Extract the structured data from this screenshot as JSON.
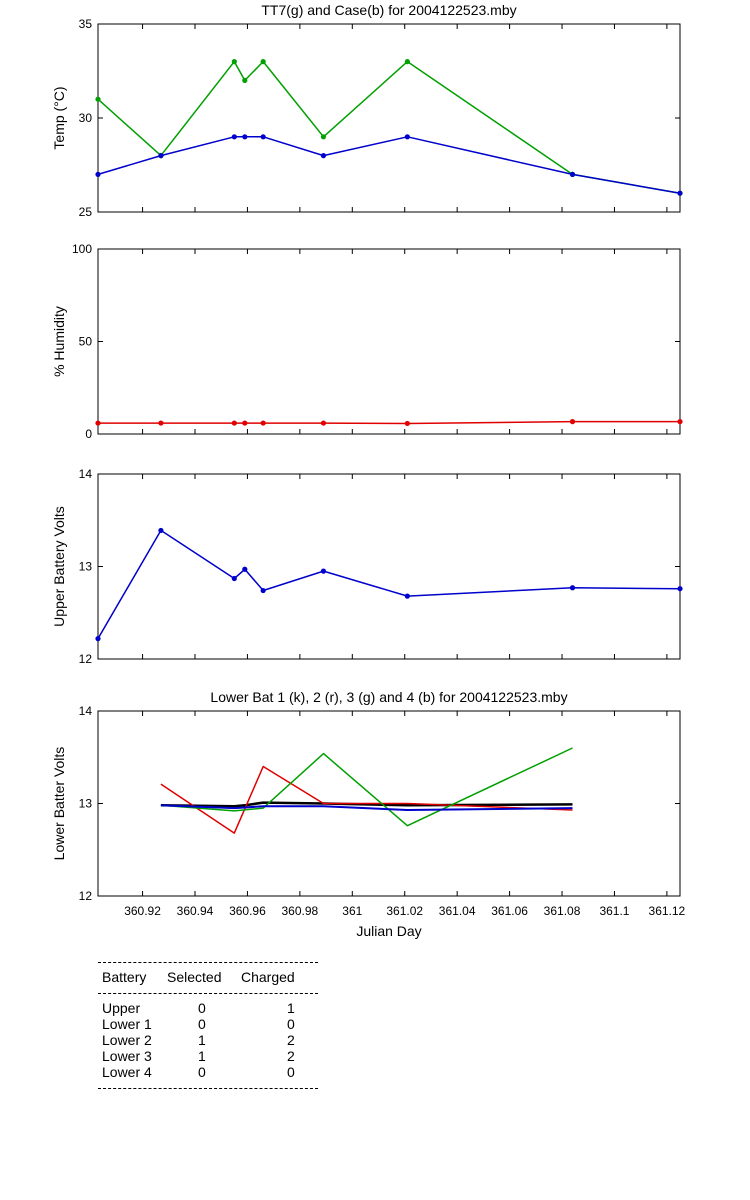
{
  "chart_data": [
    {
      "type": "line",
      "title": "TT7(g) and Case(b) for 2004122523.mby",
      "ylabel": "Temp  (°C)",
      "xlabel": "",
      "xlim": [
        360.903,
        361.125
      ],
      "ylim": [
        25,
        35
      ],
      "yticks": [
        25,
        30,
        35
      ],
      "markers": true,
      "series": [
        {
          "color": "#00a000",
          "x": [
            360.903,
            360.927,
            360.955,
            360.959,
            360.966,
            360.989,
            361.021,
            361.084,
            361.125
          ],
          "y": [
            31,
            28,
            33,
            32,
            33,
            29,
            33,
            27,
            26
          ]
        },
        {
          "color": "#0000cc",
          "x": [
            360.903,
            360.927,
            360.955,
            360.959,
            360.966,
            360.989,
            361.021,
            361.084,
            361.125
          ],
          "y": [
            27,
            28,
            29,
            29,
            29,
            28,
            29,
            27,
            26
          ]
        }
      ]
    },
    {
      "type": "line",
      "title": "",
      "ylabel": "% Humidity",
      "xlabel": "",
      "xlim": [
        360.903,
        361.125
      ],
      "ylim": [
        0,
        100
      ],
      "yticks": [
        0,
        50,
        100
      ],
      "markers": true,
      "series": [
        {
          "color": "#e00000",
          "x": [
            360.903,
            360.927,
            360.955,
            360.959,
            360.966,
            360.989,
            361.021,
            361.084,
            361.125
          ],
          "y": [
            5.9,
            5.9,
            5.9,
            5.9,
            5.9,
            5.9,
            5.7,
            6.7,
            6.7
          ]
        }
      ]
    },
    {
      "type": "line",
      "title": "",
      "ylabel": "Upper Battery Volts",
      "xlabel": "",
      "xlim": [
        360.903,
        361.125
      ],
      "ylim": [
        12,
        14
      ],
      "yticks": [
        12,
        13,
        14
      ],
      "markers": true,
      "series": [
        {
          "color": "#0000cc",
          "x": [
            360.903,
            360.927,
            360.955,
            360.959,
            360.966,
            360.989,
            361.021,
            361.084,
            361.125
          ],
          "y": [
            12.22,
            13.39,
            12.87,
            12.97,
            12.74,
            12.95,
            12.68,
            12.77,
            12.76
          ]
        }
      ]
    },
    {
      "type": "line",
      "title": "Lower Bat 1 (k), 2 (r), 3 (g) and 4 (b) for 2004122523.mby",
      "ylabel": "Lower Batter Volts",
      "xlabel": "Julian Day",
      "xlim": [
        360.903,
        361.125
      ],
      "ylim": [
        12,
        14
      ],
      "yticks": [
        12,
        13,
        14
      ],
      "xticks": [
        360.92,
        360.94,
        360.96,
        360.98,
        361,
        361.02,
        361.04,
        361.06,
        361.08,
        361.1,
        361.12
      ],
      "xticklabels": [
        "360.92",
        "360.94",
        "360.96",
        "360.98",
        "361",
        "361.02",
        "361.04",
        "361.06",
        "361.08",
        "361.1",
        "361.12"
      ],
      "markers": false,
      "series": [
        {
          "color": "#000000",
          "width": 2.5,
          "x": [
            360.927,
            360.955,
            360.959,
            360.966,
            360.989,
            361.021,
            361.084
          ],
          "y": [
            12.98,
            12.97,
            12.98,
            13.01,
            13.0,
            12.98,
            12.99
          ]
        },
        {
          "color": "#e00000",
          "width": 1.5,
          "x": [
            360.927,
            360.955,
            360.966,
            360.989,
            361.021,
            361.084
          ],
          "y": [
            13.21,
            12.68,
            13.4,
            13.0,
            13.0,
            12.93
          ]
        },
        {
          "color": "#00a000",
          "width": 1.5,
          "x": [
            360.927,
            360.955,
            360.966,
            360.989,
            361.021,
            361.084
          ],
          "y": [
            12.98,
            12.92,
            12.95,
            13.54,
            12.76,
            13.6
          ]
        },
        {
          "color": "#0000cc",
          "width": 2,
          "x": [
            360.927,
            360.955,
            360.966,
            360.989,
            361.021,
            361.084
          ],
          "y": [
            12.98,
            12.95,
            12.97,
            12.97,
            12.93,
            12.95
          ]
        }
      ]
    }
  ],
  "battery_table": {
    "headers": [
      "Battery",
      "Selected",
      "Charged"
    ],
    "rows": [
      {
        "battery": "Upper",
        "selected": "0",
        "charged": "1"
      },
      {
        "battery": "Lower 1",
        "selected": "0",
        "charged": "0"
      },
      {
        "battery": "Lower 2",
        "selected": "1",
        "charged": "2"
      },
      {
        "battery": "Lower 3",
        "selected": "1",
        "charged": "2"
      },
      {
        "battery": "Lower 4",
        "selected": "0",
        "charged": "0"
      }
    ]
  }
}
